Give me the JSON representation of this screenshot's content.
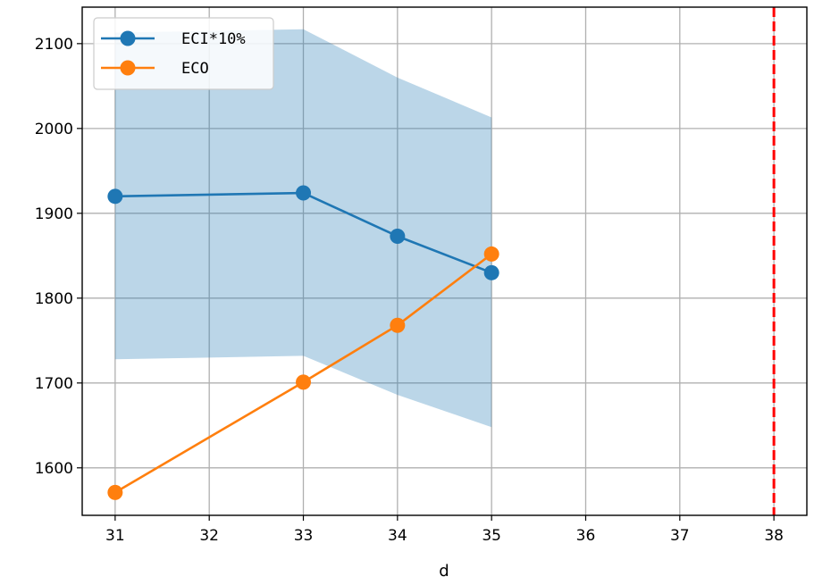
{
  "chart_data": {
    "type": "line",
    "title": "",
    "xlabel": "d",
    "ylabel": "",
    "xlim": [
      30.65,
      38.35
    ],
    "ylim": [
      1544,
      2143
    ],
    "xticks": [
      "31",
      "32",
      "33",
      "34",
      "35",
      "36",
      "37",
      "38"
    ],
    "yticks": [
      "1600",
      "1700",
      "1800",
      "1900",
      "2000",
      "2100"
    ],
    "grid": true,
    "legend_position": "upper-left",
    "series": [
      {
        "name": "ECI*10%",
        "color": "#1f77b4",
        "marker": "circle",
        "x": [
          31,
          33,
          34,
          35
        ],
        "y": [
          1920,
          1924,
          1873,
          1830
        ]
      },
      {
        "name": "ECO",
        "color": "#ff7f0e",
        "marker": "circle",
        "x": [
          31,
          33,
          34,
          35
        ],
        "y": [
          1571,
          1701,
          1768,
          1852
        ]
      }
    ],
    "band": {
      "color": "#1f77b4",
      "opacity": 0.3,
      "x": [
        31,
        33,
        34,
        35
      ],
      "upper": [
        2113,
        2117,
        2060,
        2013
      ],
      "lower": [
        1728,
        1732,
        1686,
        1648
      ]
    },
    "vline": {
      "x": 38,
      "color": "#ff0000",
      "style": "dashed"
    }
  }
}
